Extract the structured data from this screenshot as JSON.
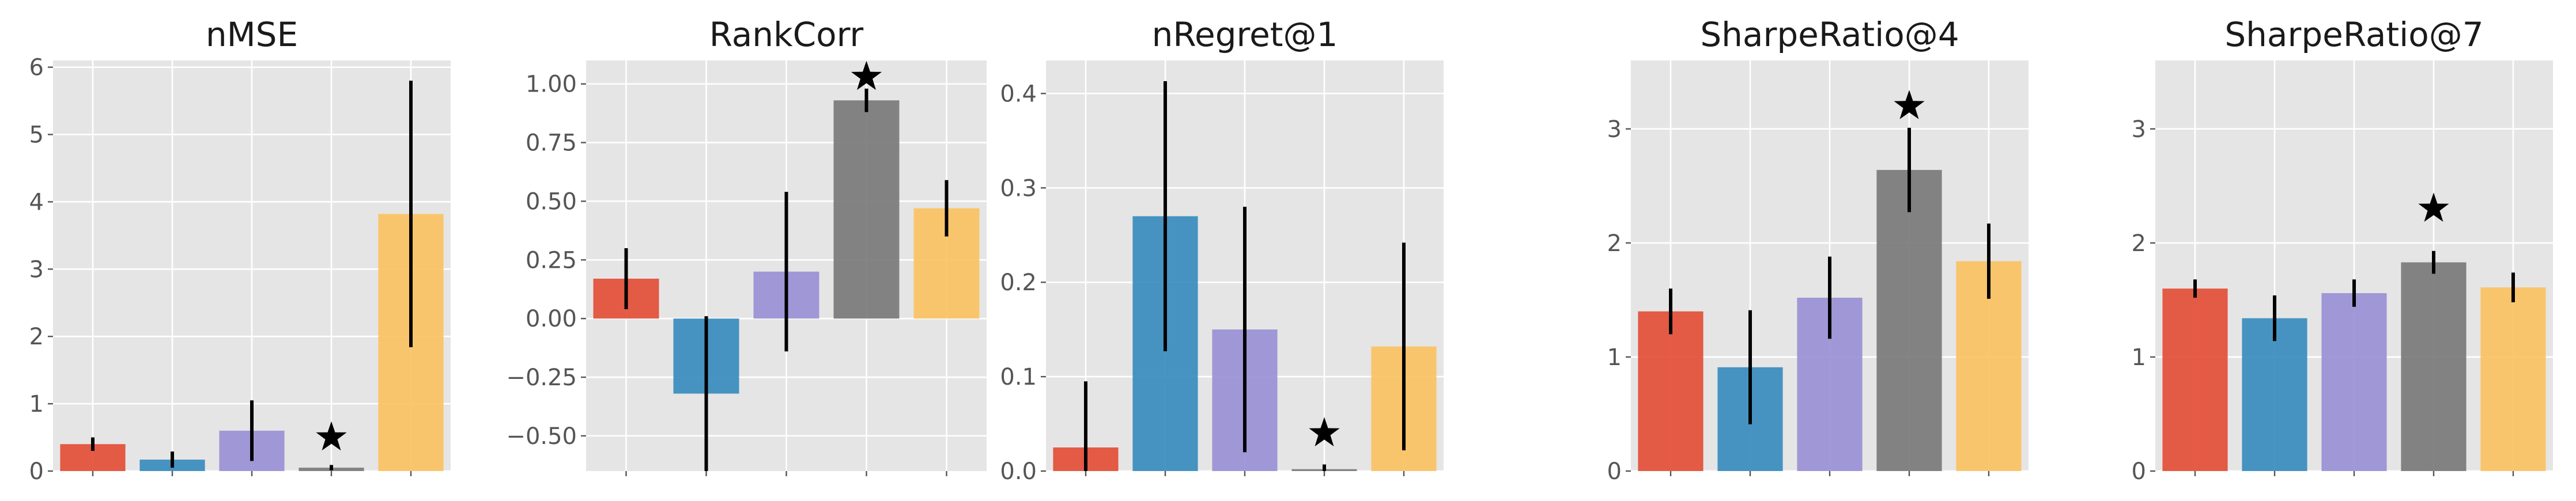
{
  "colors": [
    "#E24A33",
    "#348ABD",
    "#988ED5",
    "#777777",
    "#FBC15E"
  ],
  "chart_data": [
    {
      "type": "bar",
      "title": "nMSE",
      "categories": [
        "",
        "",
        "",
        "",
        ""
      ],
      "values": [
        0.4,
        0.17,
        0.6,
        0.05,
        3.82
      ],
      "errors": [
        0.1,
        0.12,
        0.45,
        0.04,
        1.98
      ],
      "ylim": [
        0,
        6.1
      ],
      "yticks": [
        0,
        1,
        2,
        3,
        4,
        5,
        6
      ],
      "ytick_labels": [
        "0",
        "1",
        "2",
        "3",
        "4",
        "5",
        "6"
      ],
      "best_index": 3,
      "star_value": 0.5,
      "grid": true,
      "legend": "none"
    },
    {
      "type": "bar",
      "title": "RankCorr",
      "categories": [
        "",
        "",
        "",
        "",
        ""
      ],
      "values": [
        0.17,
        -0.32,
        0.2,
        0.93,
        0.47
      ],
      "errors": [
        0.13,
        0.33,
        0.34,
        0.05,
        0.12
      ],
      "ylim": [
        -0.65,
        1.1
      ],
      "yticks": [
        -0.5,
        -0.25,
        0,
        0.25,
        0.5,
        0.75,
        1.0
      ],
      "ytick_labels": [
        "−0.50",
        "−0.25",
        "0.00",
        "0.25",
        "0.50",
        "0.75",
        "1.00"
      ],
      "best_index": 3,
      "star_value": 1.03,
      "grid": true,
      "legend": "none"
    },
    {
      "type": "bar",
      "title": "nRegret@1",
      "categories": [
        "",
        "",
        "",
        "",
        ""
      ],
      "values": [
        0.025,
        0.27,
        0.15,
        0.002,
        0.132
      ],
      "errors": [
        0.07,
        0.143,
        0.13,
        0.005,
        0.11
      ],
      "ylim": [
        0,
        0.435
      ],
      "yticks": [
        0,
        0.1,
        0.2,
        0.3,
        0.4
      ],
      "ytick_labels": [
        "0.0",
        "0.1",
        "0.2",
        "0.3",
        "0.4"
      ],
      "best_index": 3,
      "star_value": 0.04,
      "grid": true,
      "legend": "none"
    },
    {
      "type": "bar",
      "title": "SharpeRatio@4",
      "categories": [
        "",
        "",
        "",
        "",
        ""
      ],
      "values": [
        1.4,
        0.91,
        1.52,
        2.64,
        1.84
      ],
      "errors": [
        0.2,
        0.5,
        0.36,
        0.37,
        0.33
      ],
      "ylim": [
        0,
        3.6
      ],
      "yticks": [
        0,
        1,
        2,
        3
      ],
      "ytick_labels": [
        "0",
        "1",
        "2",
        "3"
      ],
      "best_index": 3,
      "star_value": 3.2,
      "grid": true,
      "legend": "none"
    },
    {
      "type": "bar",
      "title": "SharpeRatio@7",
      "categories": [
        "",
        "",
        "",
        "",
        ""
      ],
      "values": [
        1.6,
        1.34,
        1.56,
        1.83,
        1.61
      ],
      "errors": [
        0.08,
        0.2,
        0.12,
        0.1,
        0.13
      ],
      "ylim": [
        0,
        3.6
      ],
      "yticks": [
        0,
        1,
        2,
        3
      ],
      "ytick_labels": [
        "0",
        "1",
        "2",
        "3"
      ],
      "best_index": 3,
      "star_value": 2.3,
      "grid": true,
      "legend": "none"
    }
  ]
}
